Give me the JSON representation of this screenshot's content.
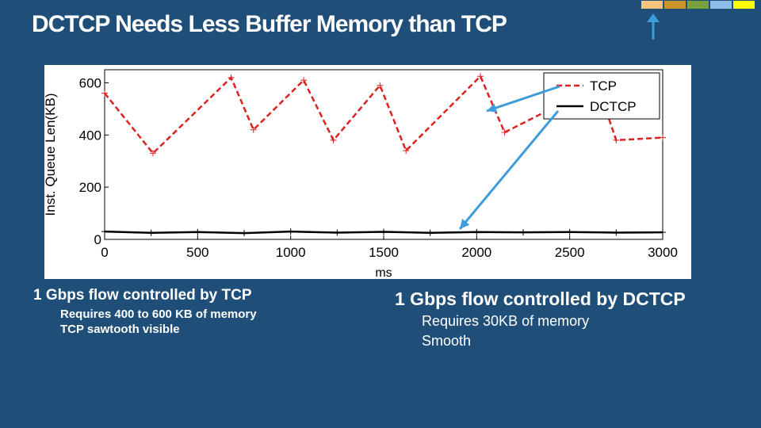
{
  "slide": {
    "title": "DCTCP Needs Less Buffer Memory than TCP",
    "swatch_colors": [
      "#f6c47f",
      "#c9932a",
      "#77a33a",
      "#8fbfe8",
      "#ffff00"
    ],
    "arrow_color": "#3d9cdc"
  },
  "left_bullets": {
    "heading": "1 Gbps flow controlled by TCP",
    "items": [
      "Requires 400 to 600 KB of memory",
      "TCP sawtooth visible"
    ]
  },
  "right_bullets": {
    "heading": "1 Gbps flow controlled by DCTCP",
    "items": [
      "Requires 30KB of memory",
      "Smooth"
    ]
  },
  "chart_data": {
    "type": "line",
    "xlabel": "ms",
    "ylabel": "Inst. Queue Len(KB)",
    "xlim": [
      0,
      3000
    ],
    "ylim": [
      0,
      650
    ],
    "xticks": [
      0,
      500,
      1000,
      1500,
      2000,
      2500,
      3000
    ],
    "yticks": [
      0,
      200,
      400,
      600
    ],
    "grid": false,
    "legend_position": "top-right",
    "series": [
      {
        "name": "TCP",
        "color": "#dd2222",
        "style": "dashed",
        "x": [
          0,
          260,
          680,
          800,
          1070,
          1230,
          1480,
          1620,
          2020,
          2150,
          2650,
          2750,
          3000
        ],
        "y": [
          560,
          330,
          620,
          420,
          610,
          380,
          590,
          340,
          625,
          410,
          590,
          380,
          390
        ]
      },
      {
        "name": "DCTCP",
        "color": "#000000",
        "style": "solid",
        "x": [
          0,
          250,
          500,
          750,
          1000,
          1250,
          1500,
          1750,
          2000,
          2250,
          2500,
          2750,
          3000
        ],
        "y": [
          30,
          25,
          28,
          24,
          30,
          26,
          29,
          25,
          28,
          27,
          28,
          26,
          27
        ]
      }
    ]
  }
}
